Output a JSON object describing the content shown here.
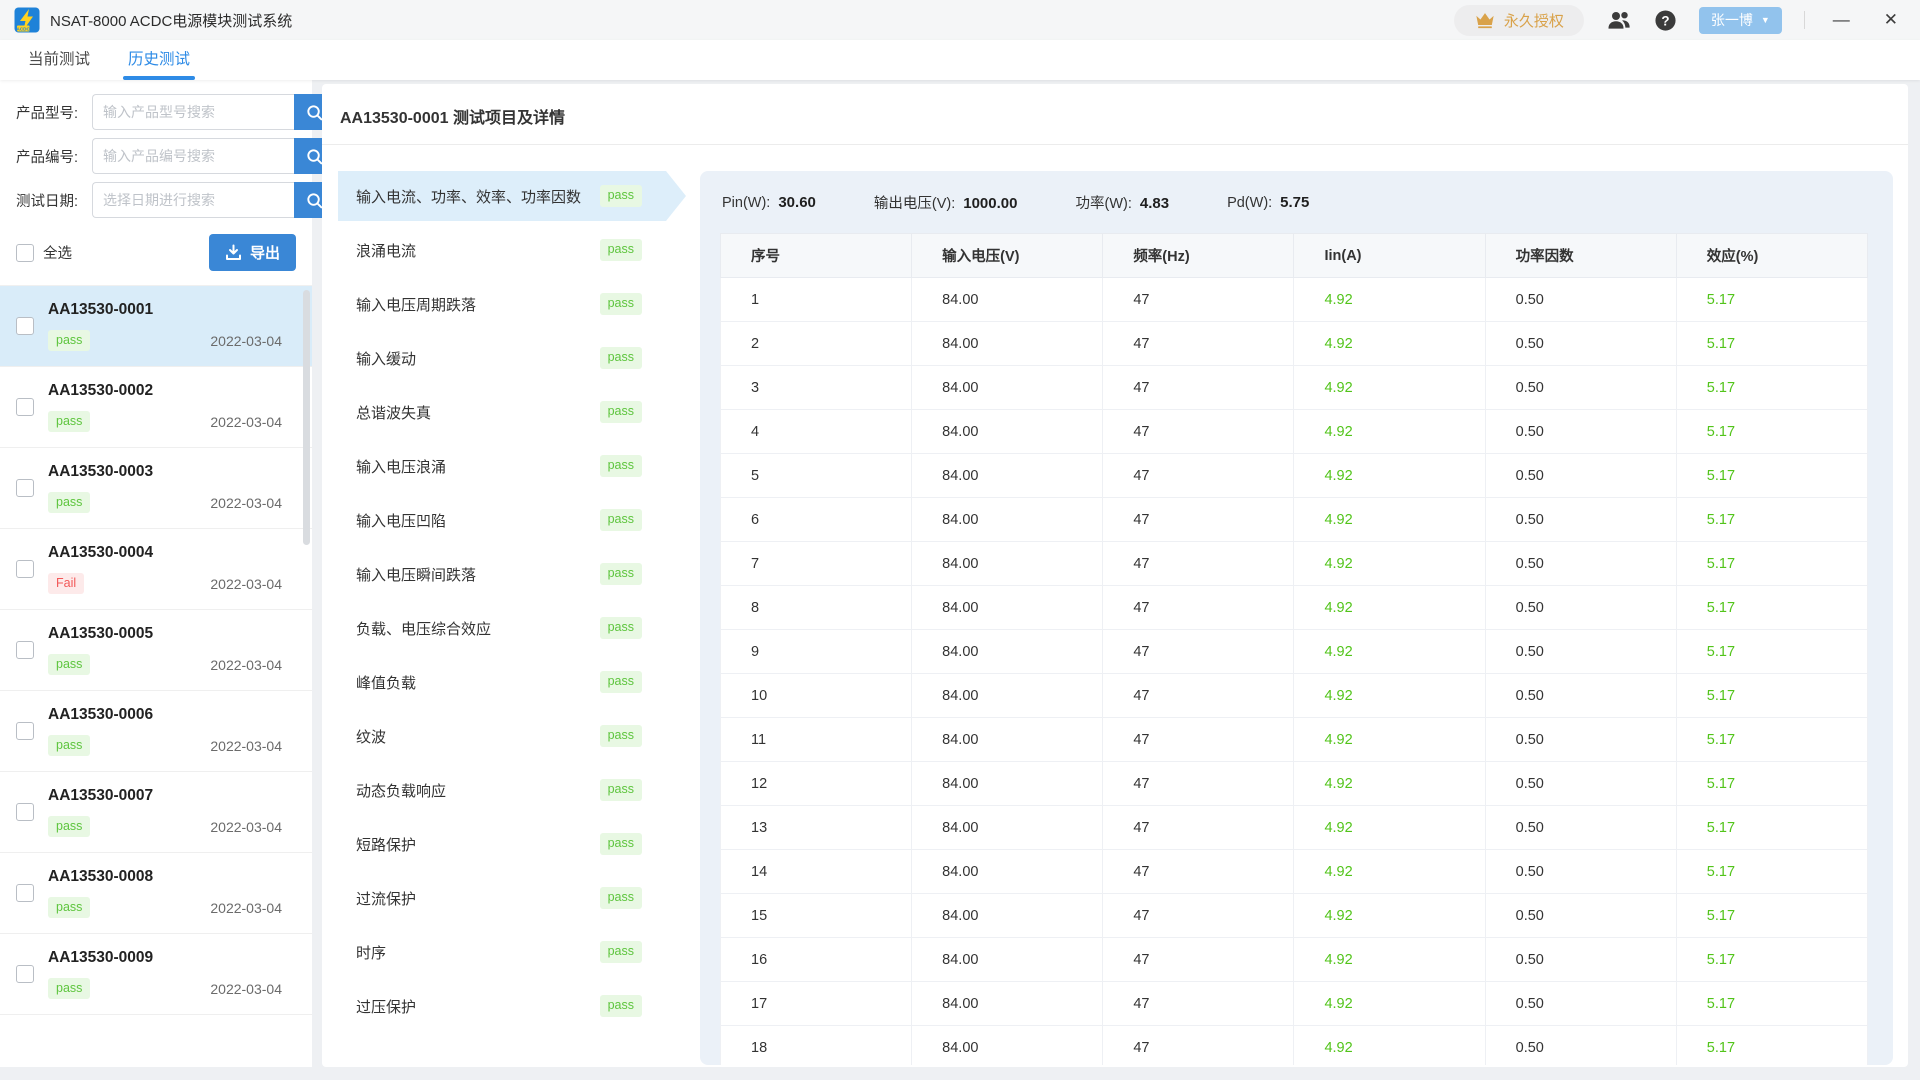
{
  "title_bar": {
    "app_title": "NSAT-8000 ACDC电源模块测试系统",
    "license_label": "永久授权",
    "user_name": "张一博"
  },
  "tabs": [
    {
      "label": "当前测试",
      "active": false
    },
    {
      "label": "历史测试",
      "active": true
    }
  ],
  "sidebar": {
    "filters": [
      {
        "label": "产品型号:",
        "placeholder": "输入产品型号搜索",
        "icon": "search-icon"
      },
      {
        "label": "产品编号:",
        "placeholder": "输入产品编号搜索",
        "icon": "search-icon"
      },
      {
        "label": "测试日期:",
        "placeholder": "选择日期进行搜索",
        "icon": "search-icon"
      }
    ],
    "select_all_label": "全选",
    "export_label": "导出",
    "export_icon": "download-icon",
    "items": [
      {
        "id": "AA13530-0001",
        "status": "pass",
        "date": "2022-03-04",
        "selected": true
      },
      {
        "id": "AA13530-0002",
        "status": "pass",
        "date": "2022-03-04",
        "selected": false
      },
      {
        "id": "AA13530-0003",
        "status": "pass",
        "date": "2022-03-04",
        "selected": false
      },
      {
        "id": "AA13530-0004",
        "status": "Fail",
        "date": "2022-03-04",
        "selected": false
      },
      {
        "id": "AA13530-0005",
        "status": "pass",
        "date": "2022-03-04",
        "selected": false
      },
      {
        "id": "AA13530-0006",
        "status": "pass",
        "date": "2022-03-04",
        "selected": false
      },
      {
        "id": "AA13530-0007",
        "status": "pass",
        "date": "2022-03-04",
        "selected": false
      },
      {
        "id": "AA13530-0008",
        "status": "pass",
        "date": "2022-03-04",
        "selected": false
      },
      {
        "id": "AA13530-0009",
        "status": "pass",
        "date": "2022-03-04",
        "selected": false
      }
    ]
  },
  "main": {
    "title": "AA13530-0001 测试项目及详情",
    "test_items": [
      {
        "name": "输入电流、功率、效率、功率因数",
        "status": "pass",
        "selected": true
      },
      {
        "name": "浪涌电流",
        "status": "pass",
        "selected": false
      },
      {
        "name": "输入电压周期跌落",
        "status": "pass",
        "selected": false
      },
      {
        "name": "输入缓动",
        "status": "pass",
        "selected": false
      },
      {
        "name": "总谐波失真",
        "status": "pass",
        "selected": false
      },
      {
        "name": "输入电压浪涌",
        "status": "pass",
        "selected": false
      },
      {
        "name": "输入电压凹陷",
        "status": "pass",
        "selected": false
      },
      {
        "name": "输入电压瞬间跌落",
        "status": "pass",
        "selected": false
      },
      {
        "name": "负载、电压综合效应",
        "status": "pass",
        "selected": false
      },
      {
        "name": "峰值负载",
        "status": "pass",
        "selected": false
      },
      {
        "name": "纹波",
        "status": "pass",
        "selected": false
      },
      {
        "name": "动态负载响应",
        "status": "pass",
        "selected": false
      },
      {
        "name": "短路保护",
        "status": "pass",
        "selected": false
      },
      {
        "name": "过流保护",
        "status": "pass",
        "selected": false
      },
      {
        "name": "时序",
        "status": "pass",
        "selected": false
      },
      {
        "name": "过压保护",
        "status": "pass",
        "selected": false
      }
    ],
    "summary": [
      {
        "label": "Pin(W):",
        "value": "30.60"
      },
      {
        "label": "输出电压(V):",
        "value": "1000.00"
      },
      {
        "label": "功率(W):",
        "value": "4.83"
      },
      {
        "label": "Pd(W):",
        "value": "5.75"
      }
    ],
    "table": {
      "headers": [
        "序号",
        "输入电压(V)",
        "频率(Hz)",
        "Iin(A)",
        "功率因数",
        "效应(%)"
      ],
      "green_columns": [
        3,
        5
      ],
      "rows": [
        [
          "1",
          "84.00",
          "47",
          "4.92",
          "0.50",
          "5.17"
        ],
        [
          "2",
          "84.00",
          "47",
          "4.92",
          "0.50",
          "5.17"
        ],
        [
          "3",
          "84.00",
          "47",
          "4.92",
          "0.50",
          "5.17"
        ],
        [
          "4",
          "84.00",
          "47",
          "4.92",
          "0.50",
          "5.17"
        ],
        [
          "5",
          "84.00",
          "47",
          "4.92",
          "0.50",
          "5.17"
        ],
        [
          "6",
          "84.00",
          "47",
          "4.92",
          "0.50",
          "5.17"
        ],
        [
          "7",
          "84.00",
          "47",
          "4.92",
          "0.50",
          "5.17"
        ],
        [
          "8",
          "84.00",
          "47",
          "4.92",
          "0.50",
          "5.17"
        ],
        [
          "9",
          "84.00",
          "47",
          "4.92",
          "0.50",
          "5.17"
        ],
        [
          "10",
          "84.00",
          "47",
          "4.92",
          "0.50",
          "5.17"
        ],
        [
          "11",
          "84.00",
          "47",
          "4.92",
          "0.50",
          "5.17"
        ],
        [
          "12",
          "84.00",
          "47",
          "4.92",
          "0.50",
          "5.17"
        ],
        [
          "13",
          "84.00",
          "47",
          "4.92",
          "0.50",
          "5.17"
        ],
        [
          "14",
          "84.00",
          "47",
          "4.92",
          "0.50",
          "5.17"
        ],
        [
          "15",
          "84.00",
          "47",
          "4.92",
          "0.50",
          "5.17"
        ],
        [
          "16",
          "84.00",
          "47",
          "4.92",
          "0.50",
          "5.17"
        ],
        [
          "17",
          "84.00",
          "47",
          "4.92",
          "0.50",
          "5.17"
        ],
        [
          "18",
          "84.00",
          "47",
          "4.92",
          "0.50",
          "5.17"
        ]
      ]
    }
  },
  "colors": {
    "accent": "#3a87d6",
    "tab_active": "#2e8be6",
    "user_pill": "#92c3ed",
    "pass_text": "#5ec53e",
    "pass_bg": "#e8f8e3",
    "fail_text": "#f25858",
    "fail_bg": "#fdeaea",
    "green_value": "#52c41a",
    "selected_item_bg": "#d9ecf9",
    "selected_test_bg": "#ddeefa",
    "detail_bg": "#ebf1f8",
    "crown": "#d9a24a"
  }
}
